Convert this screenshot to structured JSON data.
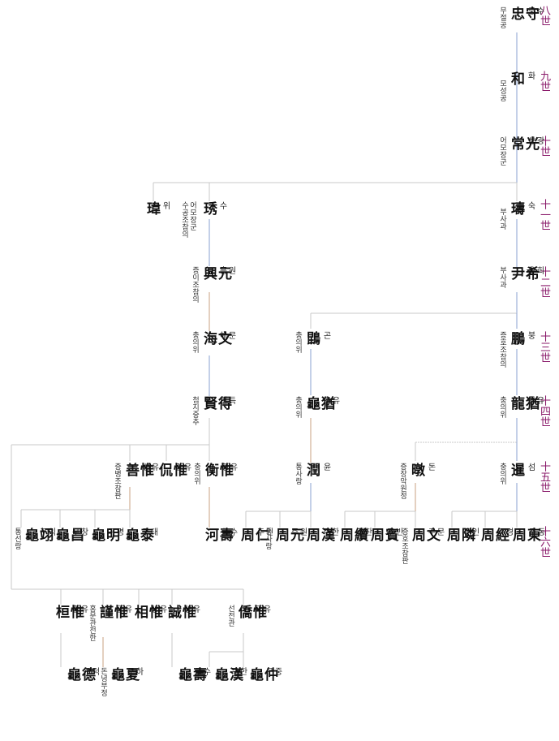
{
  "generations": [
    {
      "label": "八世"
    },
    {
      "label": "九世"
    },
    {
      "label": "十世"
    },
    {
      "label": "十一世"
    },
    {
      "label": "十二世"
    },
    {
      "label": "十三世"
    },
    {
      "label": "十四世"
    },
    {
      "label": "十五世"
    },
    {
      "label": "十六世"
    }
  ],
  "persons": [
    {
      "name": "守忠",
      "reading": "수충",
      "title": "무절공"
    },
    {
      "name": "和",
      "reading": "화",
      "title": "모성공"
    },
    {
      "name": "光常",
      "reading": "광상",
      "title": "어모장군"
    },
    {
      "name": "璹",
      "reading": "숙",
      "title": "부사과"
    },
    {
      "name": "瑋",
      "reading": "위",
      "title": ""
    },
    {
      "name": "琇",
      "reading": "수",
      "title": "어모장군\n수공조참의"
    },
    {
      "name": "希尹",
      "reading": "희윤",
      "title": "부사과"
    },
    {
      "name": "元興",
      "reading": "원흥",
      "title": "증이조참의"
    },
    {
      "name": "鵾",
      "reading": "곤",
      "title": "충의위"
    },
    {
      "name": "鵬",
      "reading": "붕",
      "title": "증호조참의"
    },
    {
      "name": "文海",
      "reading": "문해",
      "title": "충의위"
    },
    {
      "name": "猶龜",
      "reading": "유구",
      "title": "충의위"
    },
    {
      "name": "猶龍",
      "reading": "유룡",
      "title": "충의위"
    },
    {
      "name": "得賢",
      "reading": "득현",
      "title": "첨지중추"
    },
    {
      "name": "潤",
      "reading": "윤",
      "title": "통사랑"
    },
    {
      "name": "暾",
      "reading": "돈",
      "title": "증장악원정"
    },
    {
      "name": "暹",
      "reading": "섬",
      "title": "충의위"
    },
    {
      "name": "惟善",
      "reading": "유선",
      "title": "증병조참판"
    },
    {
      "name": "惟侃",
      "reading": "유간",
      "title": ""
    },
    {
      "name": "惟衡",
      "reading": "유형",
      "title": "충의위"
    },
    {
      "name": "翊龜",
      "reading": "익구",
      "title": "통선랑"
    },
    {
      "name": "昌龜",
      "reading": "창구",
      "title": ""
    },
    {
      "name": "明龜",
      "reading": "명구",
      "title": ""
    },
    {
      "name": "泰龜",
      "reading": "태구",
      "title": ""
    },
    {
      "name": "壽河",
      "reading": "수하",
      "title": ""
    },
    {
      "name": "仁周",
      "reading": "인주",
      "title": ""
    },
    {
      "name": "元周",
      "reading": "원주",
      "title": "통사랑"
    },
    {
      "name": "漢周",
      "reading": "한주",
      "title": ""
    },
    {
      "name": "纘周",
      "reading": "찬주",
      "title": ""
    },
    {
      "name": "賓周",
      "reading": "빈주",
      "title": ""
    },
    {
      "name": "文周",
      "reading": "문주",
      "title": "증호조참판"
    },
    {
      "name": "隣周",
      "reading": "인주",
      "title": ""
    },
    {
      "name": "經周",
      "reading": "경주",
      "title": ""
    },
    {
      "name": "東周",
      "reading": "동주",
      "title": ""
    },
    {
      "name": "惟桓",
      "reading": "유환",
      "title": ""
    },
    {
      "name": "惟謹",
      "reading": "유근",
      "title": "홍문관전한"
    },
    {
      "name": "惟相",
      "reading": "유상",
      "title": ""
    },
    {
      "name": "惟誠",
      "reading": "유성",
      "title": ""
    },
    {
      "name": "惟僑",
      "reading": "유교",
      "title": "선전관"
    },
    {
      "name": "德龜",
      "reading": "덕구",
      "title": ""
    },
    {
      "name": "夏龜",
      "reading": "하구",
      "title": "돈녕부정"
    },
    {
      "name": "壽龜",
      "reading": "수구",
      "title": ""
    },
    {
      "name": "漢龜",
      "reading": "한구",
      "title": ""
    },
    {
      "name": "仲龜",
      "reading": "중구",
      "title": ""
    }
  ]
}
